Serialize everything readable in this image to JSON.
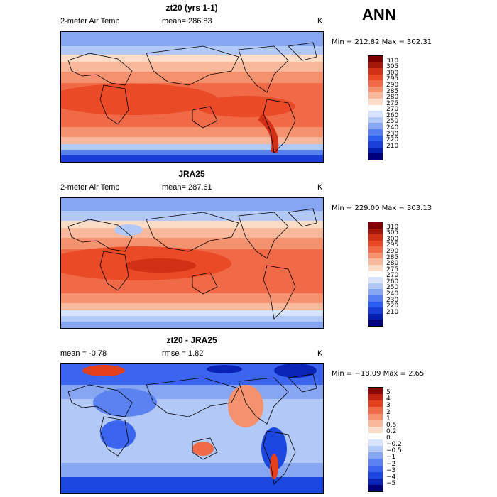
{
  "season": "ANN",
  "colors": {
    "abs_scale": [
      "#00007a",
      "#0520b0",
      "#1a3fd8",
      "#2c5ef0",
      "#5680f2",
      "#86a6f2",
      "#b2c8f7",
      "#d8e4fb",
      "#ffffff",
      "#fbdcc6",
      "#f7b89c",
      "#f49270",
      "#f06a48",
      "#ea4a26",
      "#d23014",
      "#a31808",
      "#7a0000"
    ],
    "diff_scale": [
      "#00007a",
      "#0a24b8",
      "#1c46e0",
      "#3b65ee",
      "#5a82f0",
      "#86a6f2",
      "#b2c8f7",
      "#d8e4fb",
      "#ffffff",
      "#fbdcc6",
      "#f7b89c",
      "#f49270",
      "#f06a48",
      "#e5401e",
      "#c22210",
      "#8a0808"
    ]
  },
  "panels": [
    {
      "title": "zt20 (yrs 1-1)",
      "variable": "2-meter Air Temp",
      "stat_text": "mean= 286.83",
      "units": "K",
      "range_text": "Min = 212.82 Max = 302.31",
      "labels": [
        "310",
        "305",
        "300",
        "295",
        "290",
        "285",
        "280",
        "275",
        "270",
        "260",
        "250",
        "240",
        "230",
        "220",
        "210"
      ]
    },
    {
      "title": "JRA25",
      "variable": "2-meter Air Temp",
      "stat_text": "mean= 287.61",
      "units": "K",
      "range_text": "Min = 229.00 Max = 303.13",
      "labels": [
        "310",
        "305",
        "300",
        "295",
        "290",
        "285",
        "280",
        "275",
        "270",
        "260",
        "250",
        "240",
        "230",
        "220",
        "210"
      ]
    },
    {
      "title": "zt20 - JRA25",
      "variable": "mean =  -0.78",
      "stat_text": "rmse =   1.82",
      "units": "K",
      "range_text": "Min = −18.09 Max =   2.65",
      "labels": [
        "5",
        "4",
        "3",
        "2",
        "1",
        "0.5",
        "0.2",
        "0",
        "−0.2",
        "−0.5",
        "−1",
        "−2",
        "−3",
        "−4",
        "−5"
      ]
    }
  ]
}
